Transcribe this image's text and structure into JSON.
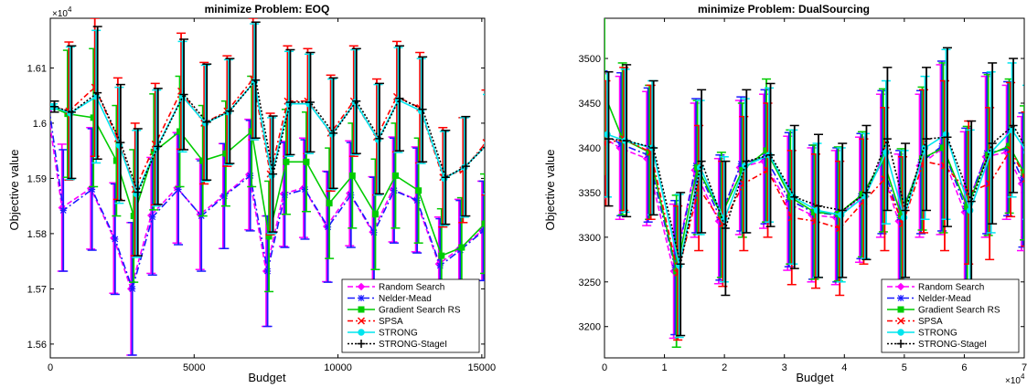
{
  "chart_data": [
    {
      "type": "line",
      "title": "minimize Problem: EOQ",
      "xlabel": "Budget",
      "ylabel": "Objective value",
      "y_multiplier": "×10^4",
      "xlim": [
        0,
        15100
      ],
      "ylim": [
        1.5575,
        1.619
      ],
      "x_ticks": [
        0,
        5000,
        10000,
        15000
      ],
      "x_tick_labels": [
        "0",
        "5000",
        "10000",
        "15000"
      ],
      "y_ticks": [
        1.56,
        1.57,
        1.58,
        1.59,
        1.6,
        1.61
      ],
      "y_tick_labels": [
        "1.56",
        "1.57",
        "1.58",
        "1.59",
        "1.6",
        "1.61"
      ],
      "legend_position": "bottom-right",
      "series": [
        {
          "name": "Random Search",
          "color": "#ff00ff",
          "dash": "6,3",
          "marker": "diamond",
          "x": [
            0,
            500,
            1500,
            2300,
            2900,
            3600,
            4500,
            5300,
            6100,
            7000,
            7600,
            8200,
            8900,
            9700,
            10500,
            11300,
            12000,
            12800,
            13600,
            14300,
            15100
          ],
          "y": [
            1.6027,
            1.5847,
            1.5882,
            1.5792,
            1.57,
            1.5833,
            1.5883,
            1.5835,
            1.5868,
            1.5907,
            1.5732,
            1.5872,
            1.5883,
            1.5813,
            1.5873,
            1.5803,
            1.588,
            1.5862,
            1.5745,
            1.5772,
            1.5805
          ],
          "err": [
            0.0005,
            0.0115,
            0.011,
            0.01,
            0.012,
            0.0105,
            0.01,
            0.01,
            0.0095,
            0.01,
            0.01,
            0.0095,
            0.009,
            0.01,
            0.0095,
            0.01,
            0.0095,
            0.0095,
            0.0085,
            0.009,
            0.009
          ]
        },
        {
          "name": "Nelder-Mead",
          "color": "#1a1aff",
          "dash": "8,3,2,3",
          "marker": "asterisk",
          "x": [
            0,
            500,
            1500,
            2300,
            2900,
            3600,
            4500,
            5300,
            6100,
            7000,
            7600,
            8200,
            8900,
            9700,
            10500,
            11300,
            12000,
            12800,
            13600,
            14300,
            15100
          ],
          "y": [
            1.603,
            1.5842,
            1.588,
            1.579,
            1.57,
            1.583,
            1.588,
            1.5832,
            1.5868,
            1.5905,
            1.5732,
            1.587,
            1.588,
            1.5812,
            1.587,
            1.5802,
            1.5878,
            1.586,
            1.5742,
            1.577,
            1.5805
          ],
          "err": [
            0.0005,
            0.011,
            0.011,
            0.01,
            0.012,
            0.0105,
            0.01,
            0.01,
            0.0095,
            0.01,
            0.01,
            0.0095,
            0.009,
            0.01,
            0.0095,
            0.01,
            0.0095,
            0.0095,
            0.0085,
            0.009,
            0.009
          ]
        },
        {
          "name": "Gradient Search RS",
          "color": "#00cc00",
          "dash": "",
          "marker": "square",
          "x": [
            0,
            600,
            1500,
            2300,
            2900,
            3600,
            4500,
            5300,
            6100,
            7000,
            7600,
            8200,
            8900,
            9700,
            10500,
            11300,
            12000,
            12800,
            13600,
            14300,
            15100
          ],
          "y": [
            1.603,
            1.6017,
            1.601,
            1.5932,
            1.5832,
            1.5948,
            1.5985,
            1.5932,
            1.5945,
            1.5985,
            1.5795,
            1.593,
            1.593,
            1.5855,
            1.5905,
            1.5835,
            1.5905,
            1.5878,
            1.576,
            1.5775,
            1.5818
          ],
          "err": [
            0.0005,
            0.0115,
            0.0125,
            0.01,
            0.012,
            0.0105,
            0.01,
            0.01,
            0.0095,
            0.01,
            0.01,
            0.0095,
            0.009,
            0.01,
            0.0095,
            0.01,
            0.0095,
            0.0095,
            0.0085,
            0.009,
            0.009
          ]
        },
        {
          "name": "SPSA",
          "color": "#ff0000",
          "dash": "6,3,2,3",
          "marker": "x",
          "x": [
            0,
            600,
            1500,
            2300,
            2900,
            3600,
            4500,
            5300,
            6100,
            7000,
            7600,
            8200,
            8900,
            9700,
            10500,
            11300,
            12000,
            12800,
            13600,
            14300,
            15100
          ],
          "y": [
            1.603,
            1.6022,
            1.6065,
            1.5972,
            1.588,
            1.5962,
            1.6058,
            1.6,
            1.6022,
            1.608,
            1.5908,
            1.604,
            1.604,
            1.5982,
            1.604,
            1.5975,
            1.6048,
            1.6028,
            1.5902,
            1.5915,
            1.5965
          ],
          "err": [
            0.0005,
            0.0125,
            0.0125,
            0.011,
            0.012,
            0.011,
            0.0105,
            0.011,
            0.01,
            0.011,
            0.011,
            0.01,
            0.0095,
            0.0105,
            0.01,
            0.0105,
            0.01,
            0.01,
            0.009,
            0.0095,
            0.0095
          ]
        },
        {
          "name": "STRONG",
          "color": "#00e5ee",
          "dash": "",
          "marker": "circle",
          "x": [
            0,
            600,
            1500,
            2300,
            2900,
            3600,
            4500,
            5300,
            6100,
            7000,
            7600,
            8200,
            8900,
            9700,
            10500,
            11300,
            12000,
            12800,
            13600,
            14300,
            15100
          ],
          "y": [
            1.603,
            1.6018,
            1.6048,
            1.596,
            1.5872,
            1.5955,
            1.6048,
            1.6,
            1.602,
            1.6075,
            1.5905,
            1.6035,
            1.6035,
            1.598,
            1.6038,
            1.597,
            1.6042,
            1.6022,
            1.59,
            1.592,
            1.5962
          ],
          "err": [
            0.0005,
            0.012,
            0.012,
            0.0105,
            0.0115,
            0.0105,
            0.01,
            0.0105,
            0.0095,
            0.0105,
            0.0105,
            0.0095,
            0.009,
            0.01,
            0.0095,
            0.01,
            0.0095,
            0.0095,
            0.0085,
            0.009,
            0.009
          ]
        },
        {
          "name": "STRONG-StageI",
          "color": "#000000",
          "dash": "2,2",
          "marker": "plus",
          "x": [
            0,
            600,
            1500,
            2300,
            2900,
            3600,
            4500,
            5300,
            6100,
            7000,
            7600,
            8200,
            8900,
            9700,
            10500,
            11300,
            12000,
            12800,
            13600,
            14300,
            15100
          ],
          "y": [
            1.603,
            1.602,
            1.6055,
            1.5965,
            1.5875,
            1.5958,
            1.6052,
            1.6002,
            1.6022,
            1.6078,
            1.5908,
            1.6038,
            1.6038,
            1.5982,
            1.604,
            1.5972,
            1.6045,
            1.6025,
            1.5902,
            1.5922,
            1.5965
          ],
          "err": [
            0.001,
            0.012,
            0.012,
            0.0105,
            0.0115,
            0.0105,
            0.01,
            0.0105,
            0.0095,
            0.0105,
            0.0105,
            0.0095,
            0.009,
            0.01,
            0.0095,
            0.01,
            0.0095,
            0.0095,
            0.0085,
            0.009,
            0.009
          ]
        }
      ]
    },
    {
      "type": "line",
      "title": "minimize Problem: DualSourcing",
      "xlabel": "Budget",
      "ylabel": "Objective value",
      "x_multiplier": "×10^4",
      "xlim": [
        0,
        7
      ],
      "ylim": [
        3165,
        3545
      ],
      "x_ticks": [
        0,
        1,
        2,
        3,
        4,
        5,
        6,
        7
      ],
      "x_tick_labels": [
        "0",
        "1",
        "2",
        "3",
        "4",
        "5",
        "6",
        "7"
      ],
      "y_ticks": [
        3200,
        3250,
        3300,
        3350,
        3400,
        3450,
        3500
      ],
      "y_tick_labels": [
        "3200",
        "3250",
        "3300",
        "3350",
        "3400",
        "3450",
        "3500"
      ],
      "legend_position": "bottom-right",
      "series": [
        {
          "name": "Random Search",
          "color": "#ff00ff",
          "dash": "6,3",
          "marker": "diamond",
          "x": [
            0,
            0.3,
            0.75,
            1.2,
            1.55,
            1.95,
            2.3,
            2.7,
            3.1,
            3.5,
            3.9,
            4.3,
            4.65,
            4.95,
            5.3,
            5.65,
            6.05,
            6.4,
            6.75,
            7.0
          ],
          "y": [
            3413,
            3400,
            3388,
            3262,
            3375,
            3318,
            3378,
            3385,
            3338,
            3325,
            3322,
            3342,
            3380,
            3318,
            3380,
            3398,
            3328,
            3390,
            3395,
            3360
          ],
          "err": [
            70,
            80,
            75,
            75,
            75,
            70,
            75,
            75,
            75,
            75,
            75,
            70,
            80,
            75,
            80,
            95,
            90,
            90,
            75,
            75
          ]
        },
        {
          "name": "Nelder-Mead",
          "color": "#1a1aff",
          "dash": "8,3,2,3",
          "marker": "asterisk",
          "x": [
            0,
            0.3,
            0.75,
            1.2,
            1.55,
            1.95,
            2.3,
            2.7,
            3.1,
            3.5,
            3.9,
            4.3,
            4.65,
            4.95,
            5.3,
            5.65,
            6.05,
            6.4,
            6.75,
            7.0
          ],
          "y": [
            3416,
            3404,
            3392,
            3266,
            3380,
            3322,
            3382,
            3390,
            3342,
            3328,
            3325,
            3346,
            3384,
            3322,
            3384,
            3402,
            3332,
            3394,
            3399,
            3364
          ],
          "err": [
            70,
            80,
            75,
            75,
            75,
            70,
            75,
            75,
            75,
            75,
            75,
            70,
            80,
            75,
            80,
            95,
            90,
            90,
            75,
            75
          ]
        },
        {
          "name": "Gradient Search RS",
          "color": "#00cc00",
          "dash": "",
          "marker": "square",
          "x": [
            0,
            0.3,
            0.75,
            1.2,
            1.55,
            1.95,
            2.3,
            2.7,
            3.1,
            3.5,
            3.9,
            4.3,
            4.65,
            4.95,
            5.3,
            5.65,
            6.05,
            6.4,
            6.75,
            7.0
          ],
          "y": [
            3460,
            3410,
            3395,
            3262,
            3378,
            3325,
            3375,
            3397,
            3345,
            3328,
            3326,
            3348,
            3386,
            3324,
            3388,
            3400,
            3334,
            3392,
            3402,
            3372
          ],
          "err": [
            90,
            85,
            75,
            85,
            75,
            70,
            75,
            80,
            75,
            75,
            75,
            70,
            80,
            75,
            80,
            95,
            90,
            90,
            75,
            75
          ]
        },
        {
          "name": "SPSA",
          "color": "#ff0000",
          "dash": "6,3,2,3",
          "marker": "x",
          "x": [
            0,
            0.3,
            0.75,
            1.2,
            1.55,
            1.95,
            2.3,
            2.7,
            3.1,
            3.5,
            3.9,
            4.3,
            4.65,
            4.95,
            5.3,
            5.65,
            6.05,
            6.4,
            6.75,
            7.0
          ],
          "y": [
            3405,
            3410,
            3395,
            3260,
            3355,
            3315,
            3360,
            3375,
            3322,
            3318,
            3310,
            3340,
            3365,
            3315,
            3385,
            3380,
            3350,
            3360,
            3398,
            3365
          ],
          "err": [
            70,
            80,
            75,
            75,
            70,
            70,
            75,
            75,
            75,
            75,
            75,
            70,
            80,
            75,
            80,
            95,
            80,
            85,
            75,
            75
          ]
        },
        {
          "name": "STRONG",
          "color": "#00e5ee",
          "dash": "",
          "marker": "circle",
          "x": [
            0,
            0.3,
            0.75,
            1.2,
            1.55,
            1.95,
            2.3,
            2.7,
            3.1,
            3.5,
            3.9,
            4.3,
            4.65,
            4.95,
            5.3,
            5.65,
            6.05,
            6.4,
            6.75,
            7.0
          ],
          "y": [
            3415,
            3408,
            3400,
            3268,
            3378,
            3320,
            3380,
            3392,
            3345,
            3330,
            3325,
            3346,
            3395,
            3322,
            3400,
            3415,
            3330,
            3395,
            3420,
            3395
          ],
          "err": [
            70,
            80,
            75,
            80,
            75,
            70,
            75,
            75,
            75,
            75,
            75,
            70,
            80,
            75,
            80,
            95,
            90,
            90,
            75,
            75
          ]
        },
        {
          "name": "STRONG-StageI",
          "color": "#000000",
          "dash": "2,2",
          "marker": "plus",
          "x": [
            0,
            0.3,
            0.75,
            1.2,
            1.55,
            1.95,
            2.3,
            2.7,
            3.1,
            3.5,
            3.9,
            4.3,
            4.65,
            4.95,
            5.3,
            5.65,
            6.05,
            6.4,
            6.75,
            7.0
          ],
          "y": [
            3410,
            3408,
            3400,
            3270,
            3385,
            3310,
            3385,
            3392,
            3345,
            3335,
            3330,
            3350,
            3410,
            3330,
            3410,
            3412,
            3340,
            3405,
            3425,
            3395
          ],
          "err": [
            75,
            85,
            75,
            80,
            80,
            75,
            80,
            80,
            80,
            80,
            75,
            75,
            80,
            75,
            80,
            100,
            90,
            90,
            75,
            75
          ]
        }
      ]
    }
  ]
}
